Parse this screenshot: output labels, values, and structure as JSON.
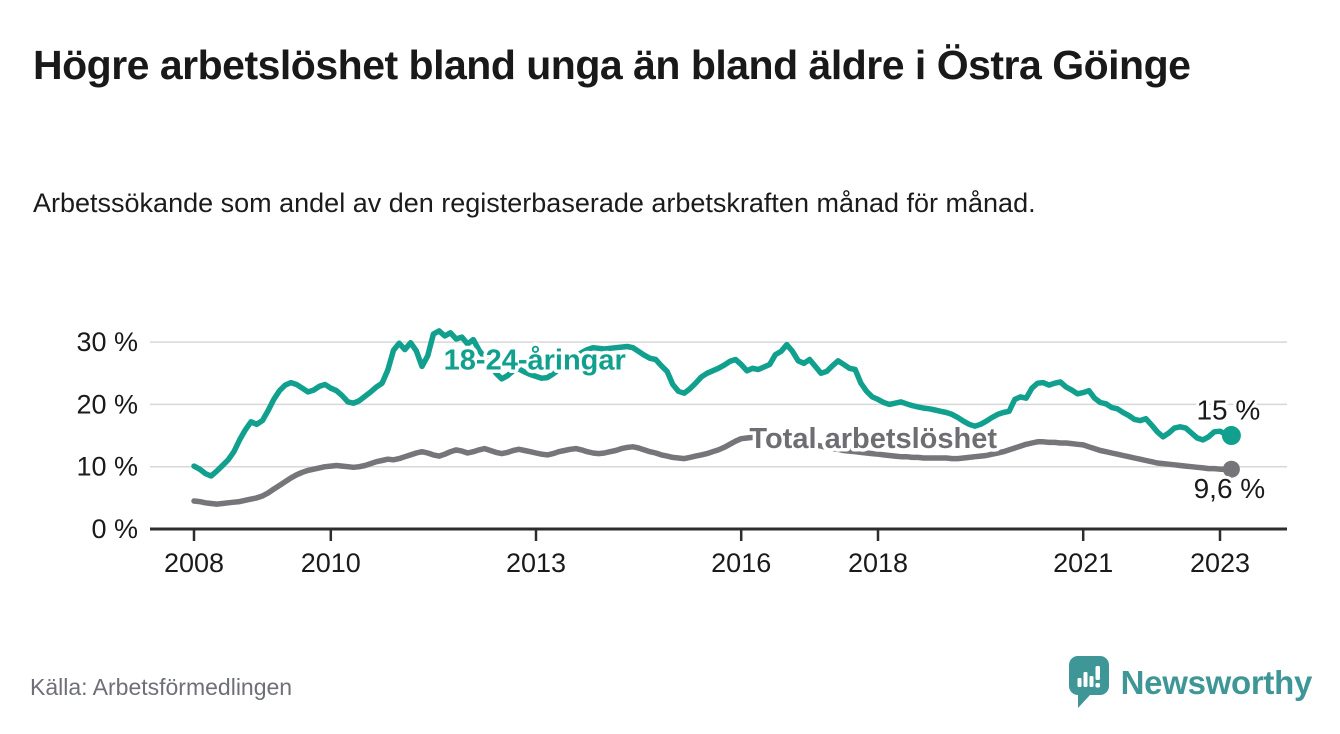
{
  "header": {
    "title": "Högre arbetslöshet bland unga än bland äldre i Östra Göinge",
    "subtitle": "Arbetssökande som andel av den registerbaserade arbetskraften månad för månad."
  },
  "footer": {
    "source": "Källa: Arbetsförmedlingen",
    "logo_text": "Newsworthy"
  },
  "colors": {
    "youth_line": "#12a08e",
    "total_line": "#76767a",
    "total_label": "#6e6e72",
    "value_label": "#1a1a1a",
    "grid": "#d8d8d8",
    "axis": "#2d2d2d",
    "logo_teal": "#3e9796"
  },
  "chart_data": {
    "type": "line",
    "title": "Högre arbetslöshet bland unga än bland äldre i Östra Göinge",
    "subtitle": "Arbetssökande som andel av den registerbaserade arbetskraften månad för månad.",
    "x_start": "2008-01",
    "x_end": "2023-03",
    "frequency": "monthly",
    "xticks": [
      2008,
      2010,
      2013,
      2016,
      2018,
      2021,
      2023
    ],
    "yticks": [
      0,
      10,
      20,
      30
    ],
    "ytick_suffix": " %",
    "ylim": [
      0,
      33
    ],
    "grid": "horizontal",
    "legend_position": "inline-labels",
    "series": [
      {
        "name": "18-24-åringar",
        "color": "#12a08e",
        "stroke_width": 5.5,
        "end_label": "15 %",
        "end_dot_radius": 9.5,
        "end_label_dx": -3,
        "end_label_dy": -16,
        "values": [
          10.1,
          9.6,
          8.9,
          8.5,
          9.3,
          10.2,
          11.1,
          12.4,
          14.3,
          15.9,
          17.2,
          16.8,
          17.4,
          19.0,
          20.8,
          22.2,
          23.1,
          23.5,
          23.2,
          22.6,
          22.0,
          22.3,
          22.9,
          23.2,
          22.6,
          22.2,
          21.4,
          20.4,
          20.2,
          20.6,
          21.3,
          22.0,
          22.8,
          23.4,
          25.5,
          28.7,
          29.8,
          28.8,
          29.9,
          28.6,
          26.1,
          27.8,
          31.3,
          31.8,
          31.0,
          31.5,
          30.5,
          30.8,
          29.7,
          30.4,
          28.7,
          27.5,
          26.3,
          25.0,
          24.1,
          24.6,
          25.4,
          25.7,
          25.2,
          24.8,
          24.5,
          24.2,
          24.3,
          24.9,
          25.6,
          26.3,
          27.0,
          27.7,
          28.3,
          28.8,
          29.1,
          29.0,
          28.9,
          29.0,
          29.1,
          29.2,
          29.3,
          29.1,
          28.5,
          27.9,
          27.4,
          27.2,
          26.2,
          25.3,
          23.2,
          22.1,
          21.8,
          22.5,
          23.4,
          24.4,
          25.0,
          25.4,
          25.8,
          26.3,
          26.9,
          27.2,
          26.4,
          25.4,
          25.8,
          25.6,
          26.0,
          26.4,
          28.0,
          28.5,
          29.6,
          28.5,
          27.0,
          26.6,
          27.2,
          26.1,
          25.0,
          25.3,
          26.2,
          27.0,
          26.4,
          25.8,
          25.6,
          23.4,
          22.1,
          21.2,
          20.8,
          20.3,
          20.0,
          20.2,
          20.4,
          20.1,
          19.8,
          19.6,
          19.4,
          19.3,
          19.1,
          18.9,
          18.7,
          18.4,
          17.9,
          17.3,
          16.8,
          16.5,
          16.8,
          17.3,
          17.9,
          18.4,
          18.7,
          18.9,
          20.8,
          21.2,
          21.0,
          22.6,
          23.4,
          23.5,
          23.1,
          23.4,
          23.6,
          22.8,
          22.3,
          21.7,
          21.9,
          22.2,
          21.0,
          20.3,
          20.1,
          19.5,
          19.3,
          18.7,
          18.2,
          17.6,
          17.4,
          17.7,
          16.7,
          15.6,
          14.8,
          15.4,
          16.2,
          16.4,
          16.2,
          15.4,
          14.6,
          14.3,
          14.8,
          15.6,
          15.7,
          15.2,
          15.0
        ]
      },
      {
        "name": "Total arbetslöshet",
        "color": "#76767a",
        "stroke_width": 5.5,
        "end_label": "9,6 %",
        "end_dot_radius": 8.5,
        "end_label_dx": -2,
        "end_label_dy": 29,
        "values": [
          4.5,
          4.4,
          4.2,
          4.1,
          4.0,
          4.1,
          4.2,
          4.3,
          4.4,
          4.6,
          4.8,
          5.0,
          5.3,
          5.8,
          6.4,
          7.0,
          7.6,
          8.2,
          8.7,
          9.1,
          9.4,
          9.6,
          9.8,
          10.0,
          10.1,
          10.2,
          10.1,
          10.0,
          9.9,
          10.0,
          10.2,
          10.5,
          10.8,
          11.0,
          11.2,
          11.1,
          11.3,
          11.6,
          11.9,
          12.2,
          12.4,
          12.2,
          11.9,
          11.7,
          12.0,
          12.4,
          12.7,
          12.5,
          12.2,
          12.4,
          12.7,
          12.9,
          12.6,
          12.3,
          12.1,
          12.3,
          12.6,
          12.8,
          12.6,
          12.4,
          12.2,
          12.0,
          11.9,
          12.1,
          12.4,
          12.6,
          12.8,
          12.9,
          12.7,
          12.4,
          12.2,
          12.1,
          12.2,
          12.4,
          12.6,
          12.9,
          13.1,
          13.2,
          13.0,
          12.7,
          12.4,
          12.2,
          11.9,
          11.7,
          11.5,
          11.4,
          11.3,
          11.5,
          11.7,
          11.9,
          12.1,
          12.4,
          12.7,
          13.1,
          13.6,
          14.1,
          14.5,
          14.6,
          14.7,
          14.6,
          14.5,
          14.4,
          14.3,
          14.2,
          14.1,
          14.0,
          13.9,
          13.8,
          13.7,
          13.5,
          13.3,
          13.1,
          12.9,
          12.8,
          12.6,
          12.5,
          12.4,
          12.3,
          12.2,
          12.1,
          12.0,
          11.9,
          11.8,
          11.7,
          11.6,
          11.6,
          11.5,
          11.5,
          11.4,
          11.4,
          11.4,
          11.4,
          11.4,
          11.3,
          11.3,
          11.4,
          11.5,
          11.6,
          11.7,
          11.8,
          12.0,
          12.2,
          12.4,
          12.7,
          13.0,
          13.3,
          13.6,
          13.8,
          14.0,
          14.0,
          13.9,
          13.9,
          13.8,
          13.8,
          13.7,
          13.6,
          13.5,
          13.2,
          12.9,
          12.6,
          12.4,
          12.2,
          12.0,
          11.8,
          11.6,
          11.4,
          11.2,
          11.0,
          10.8,
          10.6,
          10.5,
          10.4,
          10.3,
          10.2,
          10.1,
          10.0,
          9.9,
          9.8,
          9.7,
          9.7,
          9.6,
          9.6,
          9.6
        ]
      }
    ],
    "series_labels": [
      {
        "text": "18-24-åringar",
        "x_year": 2011.65,
        "value": 27.2,
        "color": "#12a08e"
      },
      {
        "text": "Total arbetslöshet",
        "x_year": 2016.12,
        "value": 14.6,
        "color": "#6e6e72"
      }
    ]
  }
}
